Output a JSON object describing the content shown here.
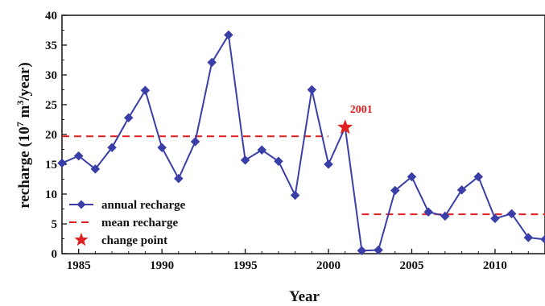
{
  "chart_data": {
    "type": "line",
    "title": "",
    "xlabel": "Year",
    "ylabel_main": "recharge (10",
    "ylabel_sup1": "7",
    "ylabel_mid": " m",
    "ylabel_sup2": "3",
    "ylabel_tail": "/year)",
    "xlim": [
      1984,
      2013
    ],
    "ylim": [
      0,
      40
    ],
    "x_ticks": [
      1985,
      1990,
      1995,
      2000,
      2005,
      2010
    ],
    "y_ticks": [
      0,
      5,
      10,
      15,
      20,
      25,
      30,
      35,
      40
    ],
    "grid": false,
    "legend_position": "bottom-left",
    "series": [
      {
        "name": "annual recharge",
        "color": "#3a3fa8",
        "marker": "diamond",
        "x": [
          1984,
          1985,
          1986,
          1987,
          1988,
          1989,
          1990,
          1991,
          1992,
          1993,
          1994,
          1995,
          1996,
          1997,
          1998,
          1999,
          2000,
          2001,
          2002,
          2003,
          2004,
          2005,
          2006,
          2007,
          2008,
          2009,
          2010,
          2011,
          2012,
          2013
        ],
        "y": [
          15.2,
          16.4,
          14.2,
          17.8,
          22.8,
          27.4,
          17.8,
          12.6,
          18.8,
          32.1,
          36.7,
          15.7,
          17.4,
          15.5,
          9.8,
          27.5,
          15.0,
          21.2,
          0.5,
          0.6,
          10.6,
          12.9,
          7.0,
          6.3,
          10.7,
          12.9,
          5.9,
          6.7,
          2.7,
          2.4
        ]
      }
    ],
    "mean_lines": [
      {
        "name": "mean recharge",
        "color": "#e02020",
        "x": [
          1984,
          2000
        ],
        "y": 19.7
      },
      {
        "name": "mean recharge",
        "color": "#e02020",
        "x": [
          2002,
          2013
        ],
        "y": 6.6
      }
    ],
    "change_point": {
      "name": "change point",
      "x": 2001,
      "y": 21.2,
      "label": "2001",
      "color": "#e02020"
    },
    "legend": [
      {
        "label": "annual recharge",
        "kind": "line-diamond",
        "color": "#3a3fa8"
      },
      {
        "label": "mean recharge",
        "kind": "dashed",
        "color": "#e02020"
      },
      {
        "label": "change point",
        "kind": "star",
        "color": "#e02020"
      }
    ]
  }
}
